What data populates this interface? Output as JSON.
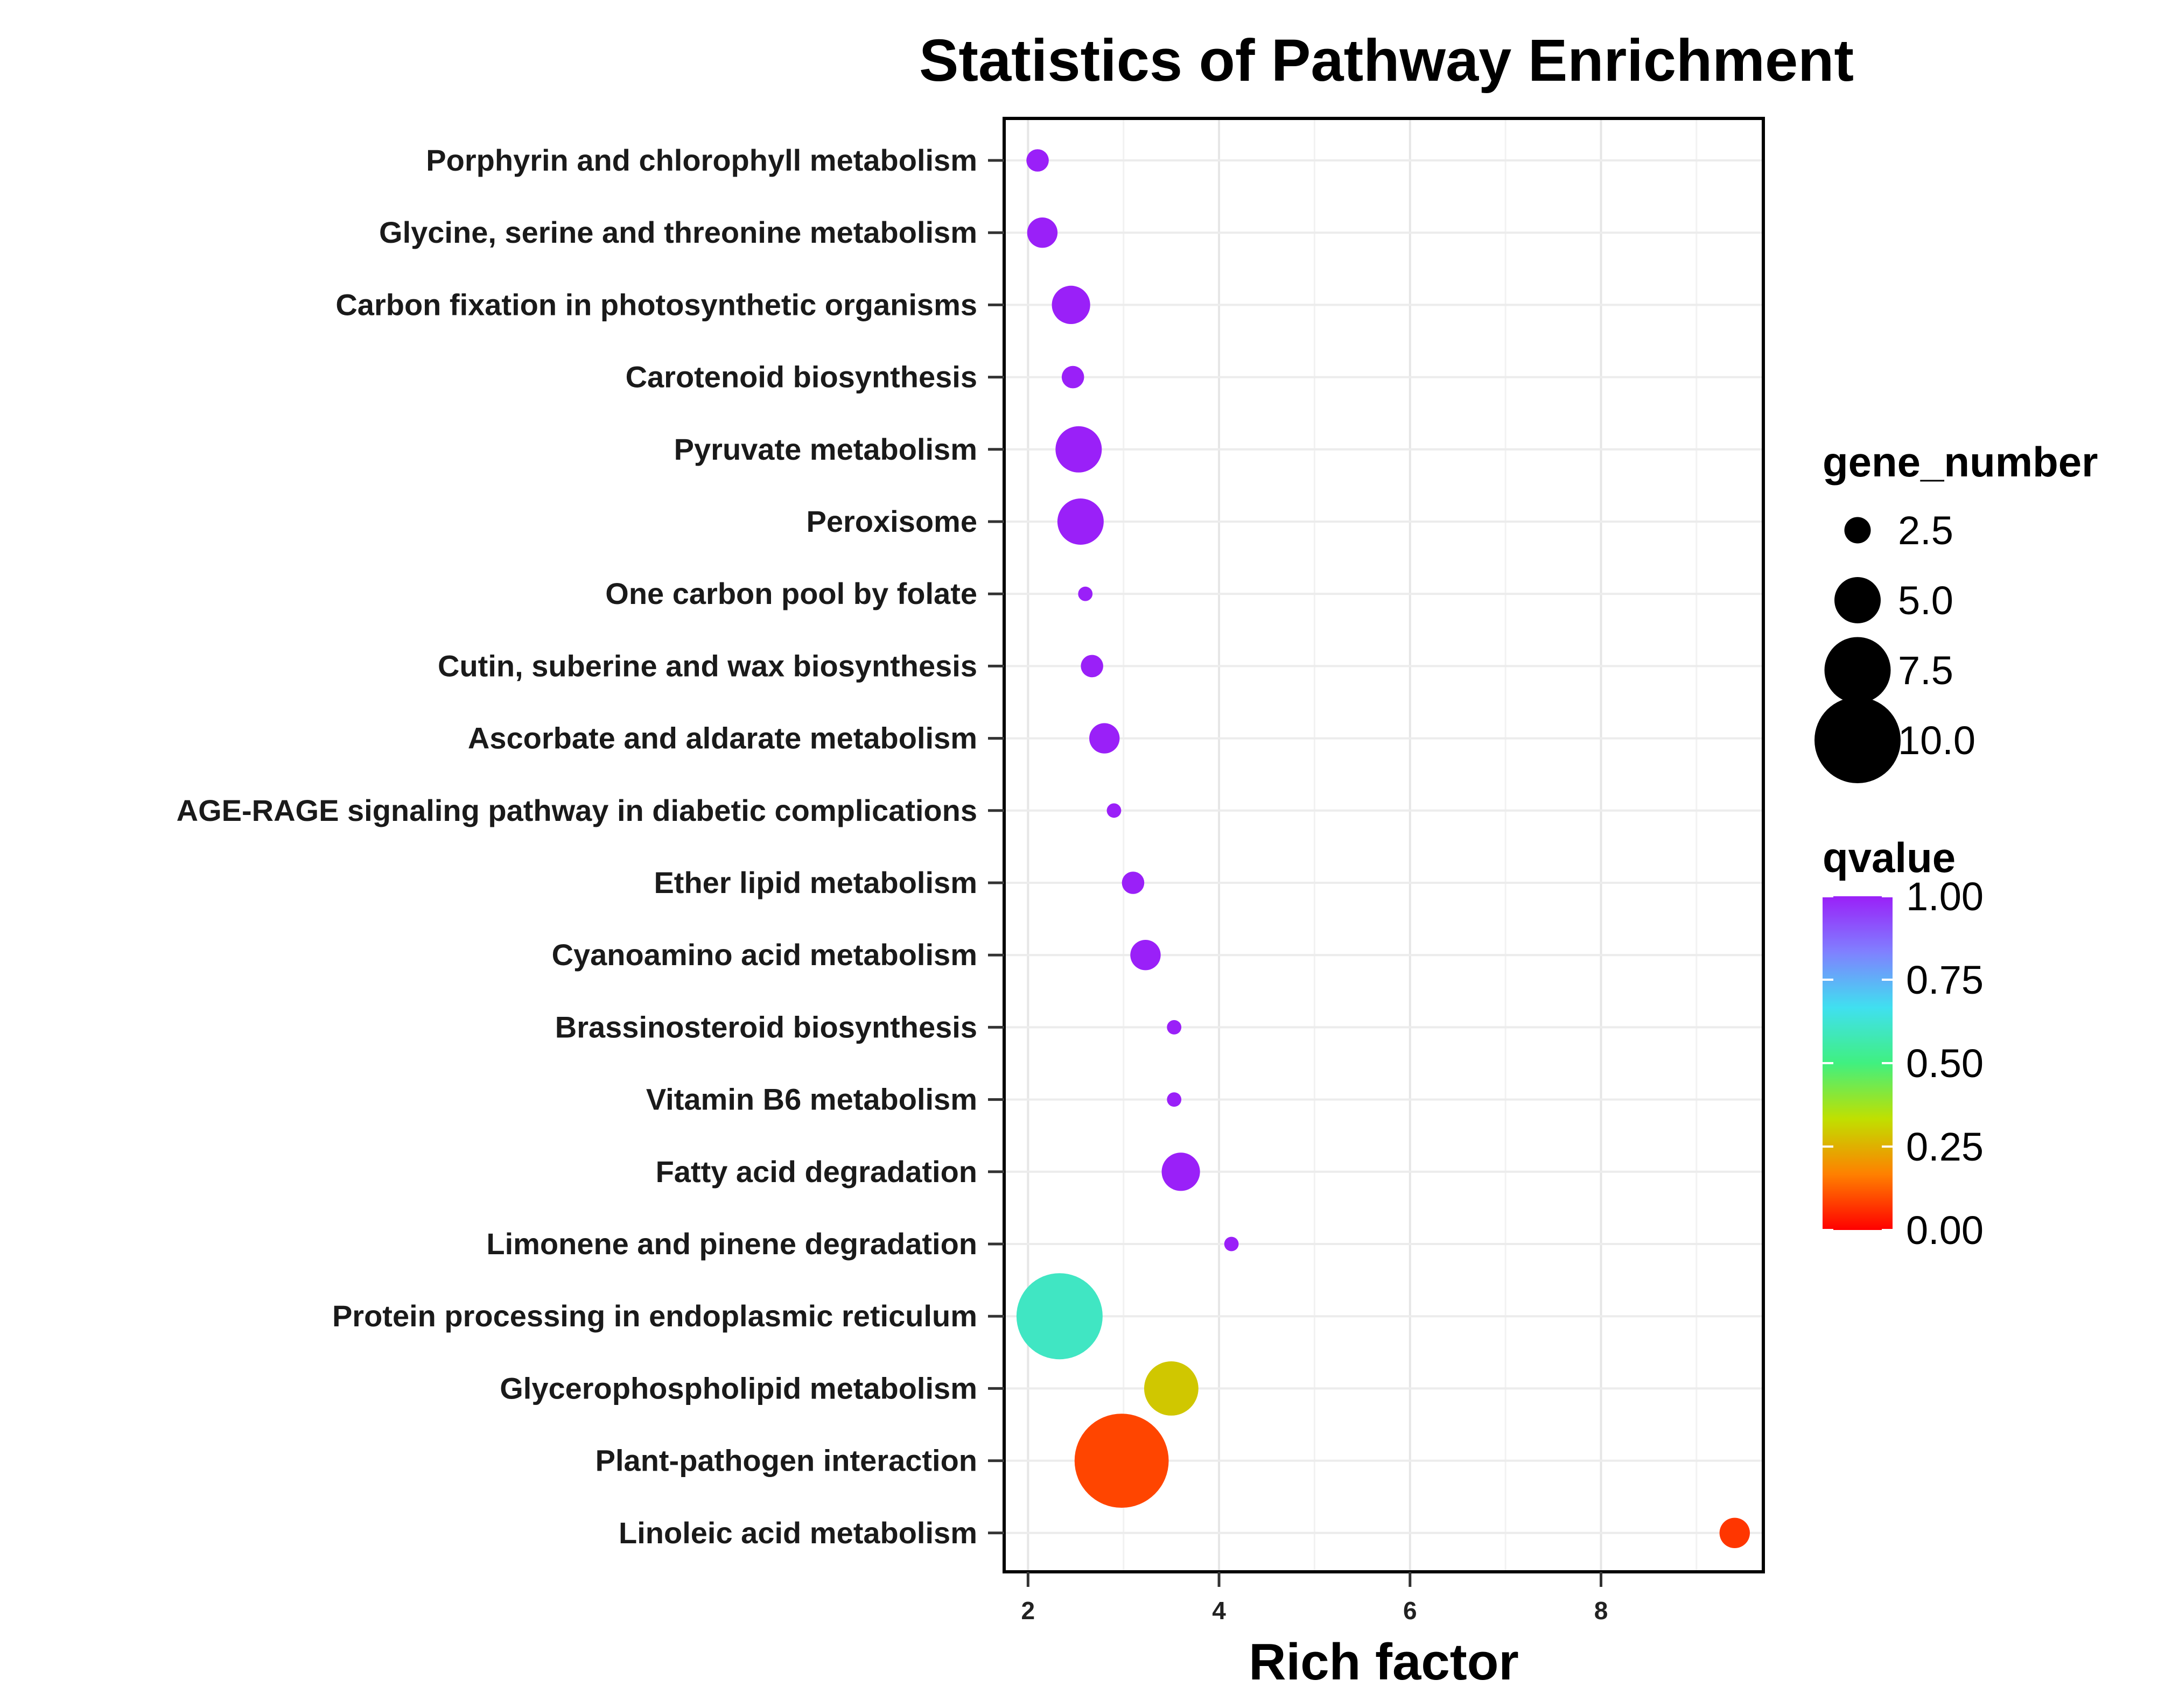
{
  "chart_data": {
    "type": "scatter",
    "title": "Statistics of Pathway Enrichment",
    "xlabel": "Rich factor",
    "ylabel": "",
    "xlim": [
      1.75,
      9.7
    ],
    "xticks": [
      2,
      4,
      6,
      8
    ],
    "grid": true,
    "categories": [
      "Porphyrin and chlorophyll metabolism",
      "Glycine, serine and threonine metabolism",
      "Carbon fixation in photosynthetic organisms",
      "Carotenoid biosynthesis",
      "Pyruvate metabolism",
      "Peroxisome",
      "One carbon pool by folate",
      "Cutin, suberine and wax biosynthesis",
      "Ascorbate and aldarate metabolism",
      "AGE-RAGE signaling pathway in diabetic complications",
      "Ether lipid metabolism",
      "Cyanoamino acid metabolism",
      "Brassinosteroid biosynthesis",
      "Vitamin B6 metabolism",
      "Fatty acid degradation",
      "Limonene and pinene degradation",
      "Protein processing in endoplasmic reticulum",
      "Glycerophospholipid metabolism",
      "Plant-pathogen interaction",
      "Linoleic acid metabolism"
    ],
    "points": [
      {
        "pathway": "Porphyrin and chlorophyll metabolism",
        "rich_factor": 2.1,
        "gene_number": 2,
        "qvalue": 1.0
      },
      {
        "pathway": "Glycine, serine and threonine metabolism",
        "rich_factor": 2.15,
        "gene_number": 3,
        "qvalue": 1.0
      },
      {
        "pathway": "Carbon fixation in photosynthetic organisms",
        "rich_factor": 2.45,
        "gene_number": 4,
        "qvalue": 1.0
      },
      {
        "pathway": "Carotenoid biosynthesis",
        "rich_factor": 2.47,
        "gene_number": 2,
        "qvalue": 1.0
      },
      {
        "pathway": "Pyruvate metabolism",
        "rich_factor": 2.53,
        "gene_number": 5,
        "qvalue": 1.0
      },
      {
        "pathway": "Peroxisome",
        "rich_factor": 2.55,
        "gene_number": 5,
        "qvalue": 1.0
      },
      {
        "pathway": "One carbon pool by folate",
        "rich_factor": 2.6,
        "gene_number": 1,
        "qvalue": 1.0
      },
      {
        "pathway": "Cutin, suberine and wax biosynthesis",
        "rich_factor": 2.67,
        "gene_number": 2,
        "qvalue": 1.0
      },
      {
        "pathway": "Ascorbate and aldarate metabolism",
        "rich_factor": 2.8,
        "gene_number": 3,
        "qvalue": 1.0
      },
      {
        "pathway": "AGE-RAGE signaling pathway in diabetic complications",
        "rich_factor": 2.9,
        "gene_number": 1,
        "qvalue": 1.0
      },
      {
        "pathway": "Ether lipid metabolism",
        "rich_factor": 3.1,
        "gene_number": 2,
        "qvalue": 1.0
      },
      {
        "pathway": "Cyanoamino acid metabolism",
        "rich_factor": 3.23,
        "gene_number": 3,
        "qvalue": 1.0
      },
      {
        "pathway": "Brassinosteroid biosynthesis",
        "rich_factor": 3.53,
        "gene_number": 1,
        "qvalue": 1.0
      },
      {
        "pathway": "Vitamin B6 metabolism",
        "rich_factor": 3.53,
        "gene_number": 1,
        "qvalue": 1.0
      },
      {
        "pathway": "Fatty acid degradation",
        "rich_factor": 3.6,
        "gene_number": 4,
        "qvalue": 1.0
      },
      {
        "pathway": "Limonene and pinene degradation",
        "rich_factor": 4.13,
        "gene_number": 1,
        "qvalue": 1.0
      },
      {
        "pathway": "Protein processing in endoplasmic reticulum",
        "rich_factor": 2.33,
        "gene_number": 10,
        "qvalue": 0.6
      },
      {
        "pathway": "Glycerophospholipid metabolism",
        "rich_factor": 3.5,
        "gene_number": 6,
        "qvalue": 0.29
      },
      {
        "pathway": "Plant-pathogen interaction",
        "rich_factor": 2.98,
        "gene_number": 11,
        "qvalue": 0.09
      },
      {
        "pathway": "Linoleic acid metabolism",
        "rich_factor": 9.4,
        "gene_number": 3,
        "qvalue": 0.07
      }
    ],
    "size_legend": {
      "title": "gene_number",
      "values": [
        2.5,
        5.0,
        7.5,
        10.0
      ],
      "labels": [
        "2.5",
        "5.0",
        "7.5",
        "10.0"
      ]
    },
    "color_legend": {
      "title": "qvalue",
      "range": [
        0,
        1
      ],
      "ticks": [
        1.0,
        0.75,
        0.5,
        0.25,
        0.0
      ],
      "labels": [
        "1.00",
        "0.75",
        "0.50",
        "0.25",
        "0.00"
      ],
      "colors": [
        "#ff0000",
        "#ff8000",
        "#c0e000",
        "#40f080",
        "#40e0f0",
        "#8080ff",
        "#9a20f8"
      ]
    }
  }
}
